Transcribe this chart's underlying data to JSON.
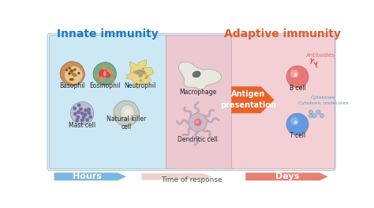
{
  "title_innate": "Innate immunity",
  "title_adaptive": "Adaptive immunity",
  "title_innate_color": "#1a7abf",
  "title_adaptive_color": "#e05c2a",
  "bg_innate": "#cce8f4",
  "bg_middle": "#ecc8d0",
  "bg_adaptive": "#f2d0d4",
  "arrow_hours_color": "#7ab8e0",
  "arrow_days_color": "#e88070",
  "hours_label": "Hours",
  "days_label": "Days",
  "time_label": "Time of response",
  "antigen_text": "Antigen\npresentation",
  "antigen_color": "#e8622a",
  "antibodies_label": "Antibodies",
  "antibodies_color": "#e07070",
  "cytokines_label": "Cytokines\nCytotoxic molecules",
  "cytokines_color": "#5599cc"
}
